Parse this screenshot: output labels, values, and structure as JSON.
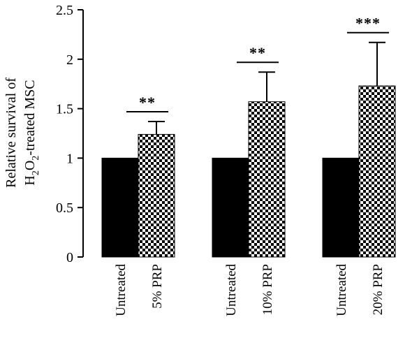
{
  "chart_data": {
    "type": "bar",
    "title": "",
    "ylabel_line1": "Relative survival of",
    "ylabel_line2": {
      "prefix": "H",
      "sub1": "2",
      "mid": "O",
      "sub2": "2",
      "suffix": "-treated MSC"
    },
    "ylim": [
      0,
      2.5
    ],
    "yticks": [
      {
        "value": 0,
        "label": "0"
      },
      {
        "value": 0.5,
        "label": "0.5"
      },
      {
        "value": 1,
        "label": "1"
      },
      {
        "value": 1.5,
        "label": "1.5"
      },
      {
        "value": 2,
        "label": "2"
      },
      {
        "value": 2.5,
        "label": "2.5"
      }
    ],
    "groups": [
      {
        "bars": [
          {
            "label": "Untreated",
            "value": 1.0,
            "error": null,
            "pattern": "solid"
          },
          {
            "label": "5% PRP",
            "value": 1.24,
            "error": 0.13,
            "pattern": "checker"
          }
        ],
        "significance": "**"
      },
      {
        "bars": [
          {
            "label": "Untreated",
            "value": 1.0,
            "error": null,
            "pattern": "solid"
          },
          {
            "label": "10% PRP",
            "value": 1.57,
            "error": 0.3,
            "pattern": "checker"
          }
        ],
        "significance": "**"
      },
      {
        "bars": [
          {
            "label": "Untreated",
            "value": 1.0,
            "error": null,
            "pattern": "solid"
          },
          {
            "label": "20% PRP",
            "value": 1.73,
            "error": 0.44,
            "pattern": "checker"
          }
        ],
        "significance": "***"
      }
    ],
    "colors": {
      "solid": "#000000",
      "checker_dark": "#000000",
      "checker_light": "#ffffff"
    }
  }
}
